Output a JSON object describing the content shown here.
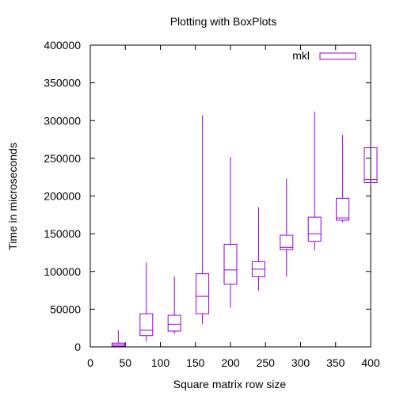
{
  "chart_data": {
    "type": "boxplot",
    "title": "Plotting with BoxPlots",
    "xlabel": "Square matrix row size",
    "ylabel": "Time in microseconds",
    "xlim": [
      0,
      400
    ],
    "ylim": [
      0,
      400000
    ],
    "xticks": [
      0,
      50,
      100,
      150,
      200,
      250,
      300,
      350,
      400
    ],
    "yticks": [
      0,
      50000,
      100000,
      150000,
      200000,
      250000,
      300000,
      350000,
      400000
    ],
    "legend_position": "top-right",
    "color": "#9400d3",
    "series": [
      {
        "name": "mkl",
        "boxes": [
          {
            "x": 40,
            "min": 0,
            "q1": 1000,
            "median": 3000,
            "q3": 5000,
            "max": 22000
          },
          {
            "x": 80,
            "min": 7000,
            "q1": 15000,
            "median": 22000,
            "q3": 44000,
            "max": 112000
          },
          {
            "x": 120,
            "min": 17000,
            "q1": 21000,
            "median": 30000,
            "q3": 42000,
            "max": 93000
          },
          {
            "x": 160,
            "min": 30000,
            "q1": 44000,
            "median": 67000,
            "q3": 97000,
            "max": 307000
          },
          {
            "x": 200,
            "min": 52000,
            "q1": 83000,
            "median": 102000,
            "q3": 136000,
            "max": 252000
          },
          {
            "x": 240,
            "min": 74000,
            "q1": 93000,
            "median": 103000,
            "q3": 113000,
            "max": 185000
          },
          {
            "x": 280,
            "min": 93000,
            "q1": 129000,
            "median": 132000,
            "q3": 148000,
            "max": 223000
          },
          {
            "x": 320,
            "min": 128000,
            "q1": 140000,
            "median": 150000,
            "q3": 172000,
            "max": 312000
          },
          {
            "x": 360,
            "min": 165000,
            "q1": 168000,
            "median": 171000,
            "q3": 197000,
            "max": 281000
          },
          {
            "x": 400,
            "min": 215000,
            "q1": 218000,
            "median": 222000,
            "q3": 264000,
            "max": 264000
          }
        ]
      }
    ]
  }
}
